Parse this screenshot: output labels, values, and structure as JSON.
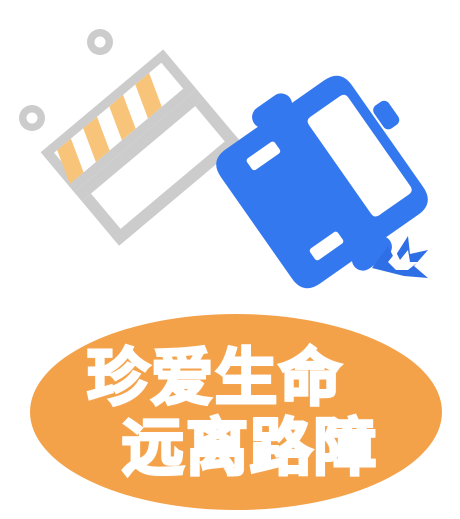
{
  "slogan": {
    "line1": "珍爱生命",
    "line2": "远离路障"
  },
  "colors": {
    "barrier_frame": "#cccccc",
    "barrier_stripe": "#f7c47a",
    "car_body": "#3478f0",
    "crash_spark": "#2f6fe6",
    "oval_background": "#f4a24a",
    "slogan_text": "#ffffff"
  },
  "icons": {
    "barrier": "road-barrier-icon",
    "car": "overturned-car-icon",
    "impact": "crash-spark-icon"
  }
}
